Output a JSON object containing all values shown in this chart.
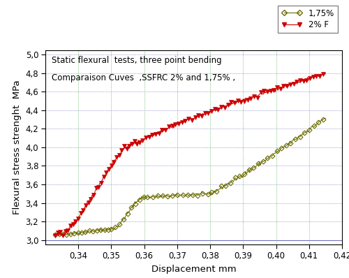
{
  "title_line1": "Static flexural  tests, three point bending",
  "title_line2": "Comparaison Cuves  ,SSFRC 2% and 1,75% ,",
  "xlabel": "Displacement mm",
  "ylabel": "Flexural stress strenght  MPa",
  "xlim": [
    0.33,
    0.42
  ],
  "ylim": [
    2.95,
    5.05
  ],
  "xticks": [
    0.34,
    0.35,
    0.36,
    0.37,
    0.38,
    0.39,
    0.4,
    0.41,
    0.42
  ],
  "yticks": [
    3.0,
    3.2,
    3.4,
    3.6,
    3.8,
    4.0,
    4.2,
    4.4,
    4.6,
    4.8,
    5.0
  ],
  "color_175": "#6b6b00",
  "color_2f": "#cc0000",
  "legend_175": "1,75%",
  "legend_2f": "2% F",
  "background_color": "#ffffff",
  "grid_color_h": "#6666bb",
  "grid_color_v": "#339933",
  "figsize": [
    5.0,
    3.98
  ],
  "dpi": 100
}
